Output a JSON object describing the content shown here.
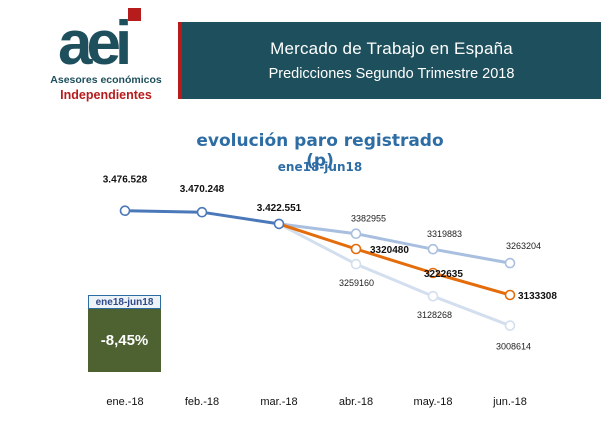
{
  "logo": {
    "mark": "aei",
    "line1": "Asesores económicos",
    "line2": "Independientes",
    "colors": {
      "teal": "#1e4f5c",
      "red": "#b71c1c"
    }
  },
  "header": {
    "title": "Mercado de Trabajo en España",
    "subtitle": "Predicciones Segundo Trimestre 2018"
  },
  "variation": {
    "label": "ene18-jun18",
    "value": "-8,45%"
  },
  "chart_data": {
    "type": "line",
    "title": "evolución paro registrado (p)",
    "subtitle": "ene18-jun18",
    "categories": [
      "ene.-18",
      "feb.-18",
      "mar.-18",
      "abr.-18",
      "may.-18",
      "jun.-18"
    ],
    "ylim": [
      2950000,
      3520000
    ],
    "grid": false,
    "legend": "none",
    "series": [
      {
        "role": "historical",
        "color": "#4a78b8",
        "values": [
          3476528,
          3470248,
          3422551,
          null,
          null,
          null
        ],
        "labels": [
          "3.476.528",
          "3.470.248",
          "3.422.551",
          "",
          "",
          ""
        ]
      },
      {
        "role": "upper",
        "color": "#a9bfdf",
        "values": [
          null,
          null,
          3422551,
          3382955,
          3319883,
          3263204
        ],
        "labels": [
          "",
          "",
          "",
          "3382955",
          "3319883",
          "3263204"
        ]
      },
      {
        "role": "central",
        "color": "#e46c0a",
        "values": [
          null,
          null,
          3422551,
          3320480,
          3222635,
          3133308
        ],
        "labels": [
          "",
          "",
          "",
          "3320480",
          "3222635",
          "3133308"
        ]
      },
      {
        "role": "lower",
        "color": "#d3dfee",
        "values": [
          null,
          null,
          3422551,
          3259160,
          3128268,
          3008614
        ],
        "labels": [
          "",
          "",
          "",
          "3259160",
          "3128268",
          "3008614"
        ]
      }
    ]
  }
}
